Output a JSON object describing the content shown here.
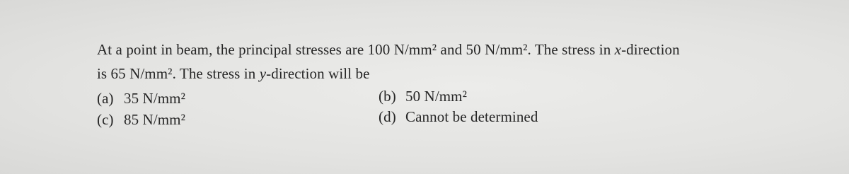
{
  "question": {
    "lines": [
      [
        "At a point in beam, the principal stresses are 100 N/mm² and 50 N/mm². The stress in ",
        "x",
        "-direction"
      ],
      [
        "is 65 N/mm². The stress in ",
        "y",
        "-direction will be"
      ]
    ]
  },
  "options": [
    {
      "label": "(a)",
      "text": "35 N/mm²"
    },
    {
      "label": "(b)",
      "text": "50 N/mm²"
    },
    {
      "label": "(c)",
      "text": "85 N/mm²"
    },
    {
      "label": "(d)",
      "text": "Cannot be determined"
    }
  ]
}
